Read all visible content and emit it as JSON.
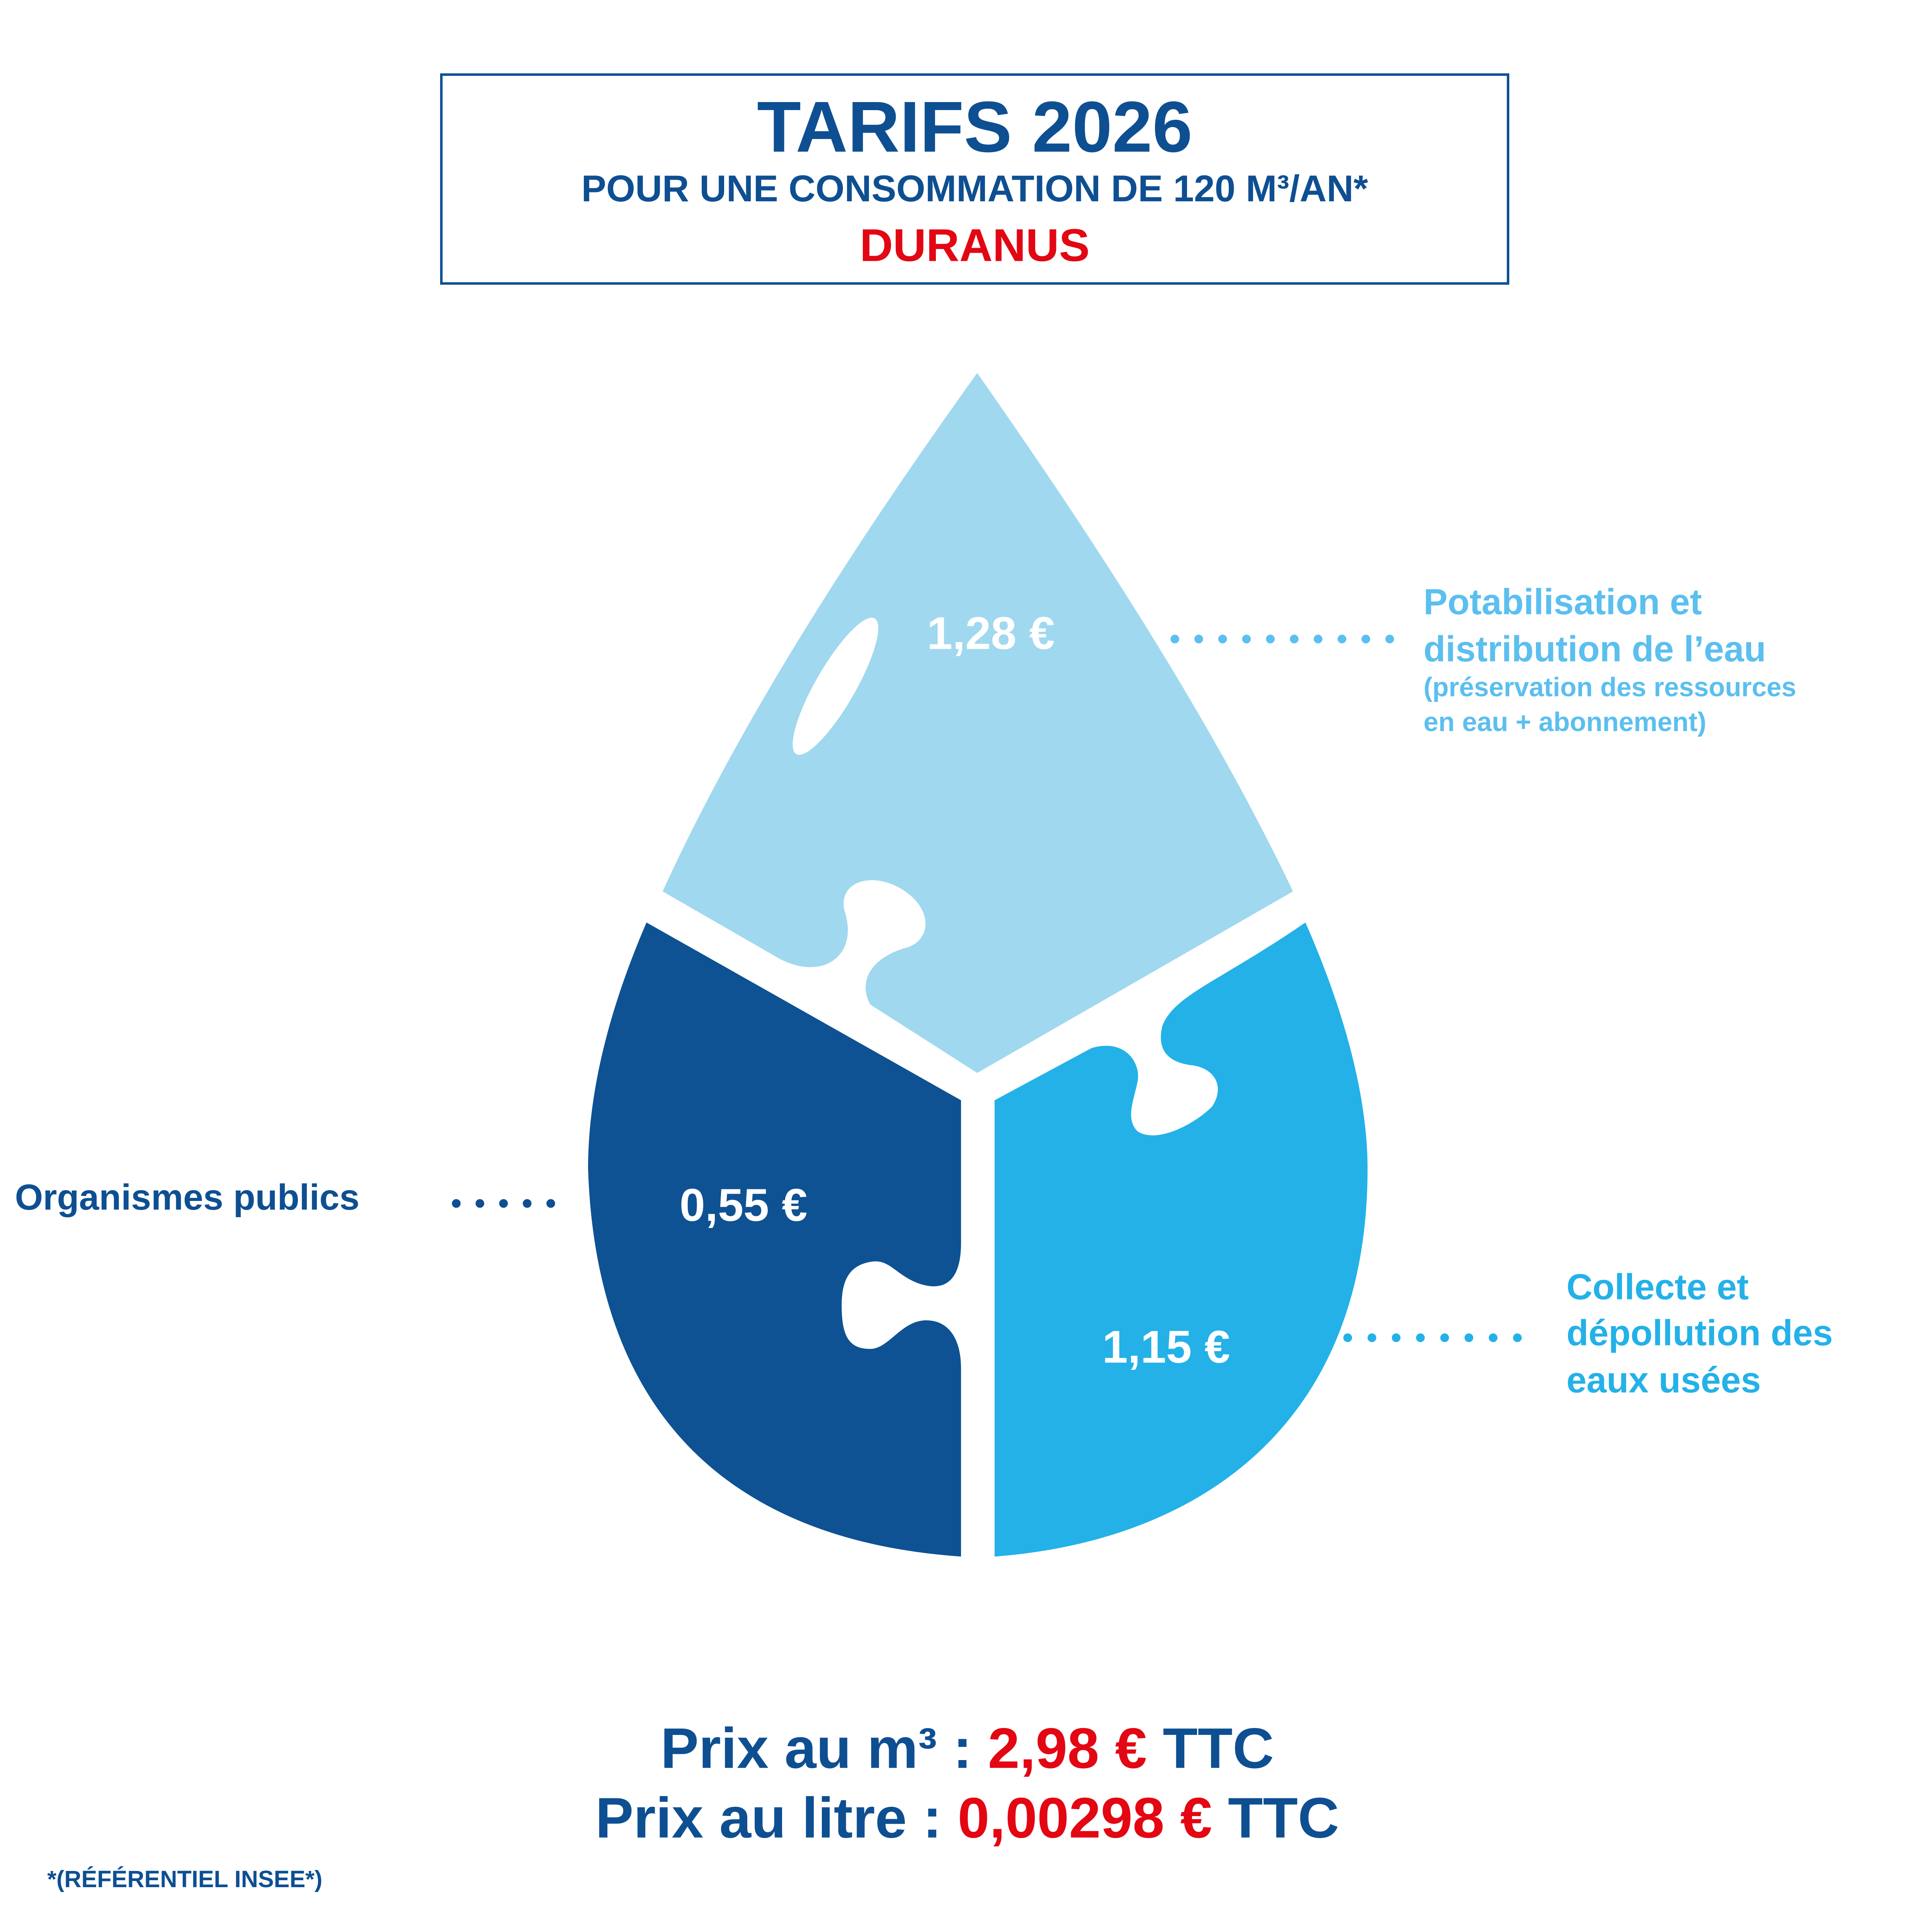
{
  "header": {
    "title": "TARIFS 2026",
    "subtitle": "POUR UNE CONSOMMATION DE 120 M³/AN*",
    "commune": "DURANUS"
  },
  "segments": [
    {
      "id": "potabilisation",
      "value": "1,28 €",
      "label_lines": [
        "Potabilisation et",
        "distribution de l’eau"
      ],
      "note_lines": [
        "(préservation des ressources",
        "en eau + abonnement)"
      ],
      "color": "#a0d8ef",
      "label_color": "#5bbfef"
    },
    {
      "id": "organismes",
      "value": "0,55 €",
      "label_lines": [
        "Organismes publics"
      ],
      "color": "#0e5293",
      "label_color": "#0e4f92"
    },
    {
      "id": "collecte",
      "value": "1,15 €",
      "label_lines": [
        "Collecte et",
        "dépollution des",
        "eaux usées"
      ],
      "color": "#23b1e8",
      "label_color": "#23b1e8"
    }
  ],
  "totals": {
    "m3_prefix": "Prix au m³ : ",
    "m3_value": "2,98 €",
    "m3_suffix": " TTC",
    "litre_prefix": "Prix au litre : ",
    "litre_value": "0,00298 €",
    "litre_suffix": " TTC"
  },
  "footnote": "*(RÉFÉRENTIEL INSEE*)",
  "colors": {
    "primary": "#0e4f92",
    "accent_red": "#e30613"
  }
}
